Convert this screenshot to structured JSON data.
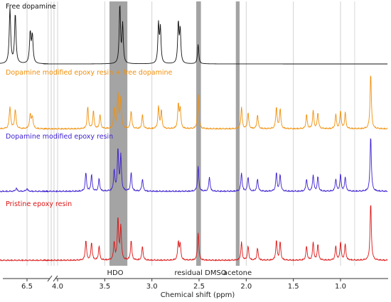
{
  "chart_data": {
    "type": "line",
    "xlabel": "Chemical shift (ppm)",
    "x_direction": "descending",
    "axis_break_between": [
      6.3,
      4.15
    ],
    "xticks": [
      "6.5",
      "4.0",
      "3.5",
      "3.0",
      "2.5",
      "2.0",
      "1.5",
      "1.0"
    ],
    "xtick_values": [
      6.5,
      4.0,
      3.5,
      3.0,
      2.5,
      2.0,
      1.5,
      1.0
    ],
    "grid": true,
    "bands": [
      {
        "label": "HDO",
        "from": 3.45,
        "to": 3.26,
        "color": "#9a9a9a"
      },
      {
        "label": "residual DMSO",
        "from": 2.53,
        "to": 2.48,
        "color": "#9a9a9a"
      },
      {
        "label": "acetone",
        "from": 2.11,
        "to": 2.07,
        "color": "#9a9a9a"
      }
    ],
    "series": [
      {
        "name": "Free dopamine",
        "color": "#111111",
        "peaks": [
          [
            6.66,
            1.0
          ],
          [
            6.61,
            0.9
          ],
          [
            6.47,
            0.55
          ],
          [
            6.45,
            0.5
          ],
          [
            3.34,
            1.05
          ],
          [
            3.31,
            0.7
          ],
          [
            2.93,
            0.7
          ],
          [
            2.91,
            0.62
          ],
          [
            2.72,
            0.72
          ],
          [
            2.7,
            0.6
          ],
          [
            2.51,
            0.35
          ]
        ]
      },
      {
        "name": "Dopamine modified epoxy resin + free dopamine",
        "color": "#f0900c",
        "peaks": [
          [
            6.66,
            0.55
          ],
          [
            6.61,
            0.48
          ],
          [
            6.47,
            0.35
          ],
          [
            6.45,
            0.3
          ],
          [
            3.68,
            0.55
          ],
          [
            3.62,
            0.45
          ],
          [
            3.55,
            0.35
          ],
          [
            3.4,
            0.5
          ],
          [
            3.36,
            0.9
          ],
          [
            3.33,
            0.75
          ],
          [
            3.22,
            0.45
          ],
          [
            3.1,
            0.35
          ],
          [
            2.93,
            0.55
          ],
          [
            2.9,
            0.45
          ],
          [
            2.72,
            0.6
          ],
          [
            2.7,
            0.5
          ],
          [
            2.51,
            0.85
          ],
          [
            2.05,
            0.55
          ],
          [
            1.98,
            0.4
          ],
          [
            1.88,
            0.35
          ],
          [
            1.68,
            0.55
          ],
          [
            1.64,
            0.5
          ],
          [
            1.36,
            0.35
          ],
          [
            1.29,
            0.45
          ],
          [
            1.24,
            0.4
          ],
          [
            1.05,
            0.35
          ],
          [
            1.0,
            0.45
          ],
          [
            0.95,
            0.4
          ],
          [
            0.68,
            1.4
          ]
        ]
      },
      {
        "name": "Dopamine modified epoxy resin",
        "color": "#3d1fd0",
        "peaks": [
          [
            6.6,
            0.08
          ],
          [
            6.5,
            0.07
          ],
          [
            3.7,
            0.45
          ],
          [
            3.64,
            0.4
          ],
          [
            3.56,
            0.3
          ],
          [
            3.4,
            0.5
          ],
          [
            3.36,
            1.0
          ],
          [
            3.33,
            0.85
          ],
          [
            3.22,
            0.45
          ],
          [
            3.1,
            0.3
          ],
          [
            2.51,
            0.6
          ],
          [
            2.39,
            0.35
          ],
          [
            2.05,
            0.45
          ],
          [
            1.98,
            0.35
          ],
          [
            1.88,
            0.3
          ],
          [
            1.68,
            0.45
          ],
          [
            1.64,
            0.4
          ],
          [
            1.36,
            0.3
          ],
          [
            1.29,
            0.4
          ],
          [
            1.24,
            0.35
          ],
          [
            1.05,
            0.3
          ],
          [
            1.0,
            0.4
          ],
          [
            0.95,
            0.35
          ],
          [
            0.68,
            1.35
          ]
        ]
      },
      {
        "name": "Pristine epoxy resin",
        "color": "#dc1414",
        "peaks": [
          [
            3.7,
            0.5
          ],
          [
            3.64,
            0.45
          ],
          [
            3.56,
            0.35
          ],
          [
            3.4,
            0.45
          ],
          [
            3.36,
            1.05
          ],
          [
            3.33,
            0.85
          ],
          [
            3.22,
            0.5
          ],
          [
            3.1,
            0.35
          ],
          [
            2.72,
            0.45
          ],
          [
            2.7,
            0.4
          ],
          [
            2.51,
            0.7
          ],
          [
            2.05,
            0.45
          ],
          [
            1.98,
            0.35
          ],
          [
            1.88,
            0.3
          ],
          [
            1.68,
            0.5
          ],
          [
            1.64,
            0.45
          ],
          [
            1.36,
            0.35
          ],
          [
            1.29,
            0.45
          ],
          [
            1.24,
            0.4
          ],
          [
            1.05,
            0.35
          ],
          [
            1.0,
            0.45
          ],
          [
            0.95,
            0.4
          ],
          [
            0.68,
            1.45
          ]
        ]
      }
    ]
  }
}
